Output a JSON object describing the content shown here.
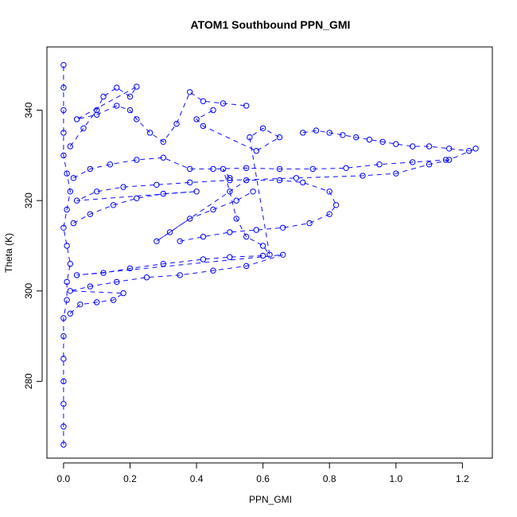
{
  "chart_data": {
    "type": "scatter",
    "title": "ATOM1 Southbound PPN_GMI",
    "xlabel": "PPN_GMI",
    "ylabel": "Theta (K)",
    "xlim": [
      -0.05,
      1.29
    ],
    "ylim": [
      263,
      354
    ],
    "x_ticks": [
      0.0,
      0.2,
      0.4,
      0.6,
      0.8,
      1.0,
      1.2
    ],
    "x_tick_labels": [
      "0.0",
      "0.2",
      "0.4",
      "0.6",
      "0.8",
      "1.0",
      "1.2"
    ],
    "y_ticks": [
      280,
      300,
      320,
      340
    ],
    "y_tick_labels": [
      "280",
      "300",
      "320",
      "340"
    ],
    "grid": false,
    "legend": "none",
    "marker": "open-circle",
    "color": "#0000ff",
    "series": [
      {
        "values": [
          [
            0.0,
            266
          ],
          [
            0.0,
            270
          ],
          [
            0.0,
            275
          ],
          [
            0.0,
            280
          ],
          [
            0.0,
            285
          ],
          [
            0.0,
            290
          ],
          [
            0.0,
            294
          ],
          [
            0.01,
            298
          ],
          [
            0.01,
            302
          ],
          [
            0.02,
            306
          ],
          [
            0.01,
            310
          ],
          [
            0.0,
            314
          ],
          [
            0.01,
            318
          ],
          [
            0.02,
            322
          ],
          [
            0.01,
            326
          ],
          [
            0.0,
            330
          ],
          [
            0.0,
            335
          ],
          [
            0.0,
            340
          ],
          [
            0.0,
            345
          ],
          [
            0.0,
            350
          ]
        ]
      },
      {
        "values": [
          [
            0.02,
            295
          ],
          [
            0.05,
            297
          ],
          [
            0.1,
            297.5
          ],
          [
            0.15,
            298
          ],
          [
            0.18,
            299.5
          ],
          [
            0.02,
            300
          ],
          [
            0.08,
            301
          ],
          [
            0.16,
            302
          ],
          [
            0.25,
            303
          ],
          [
            0.35,
            303.5
          ],
          [
            0.45,
            304.5
          ],
          [
            0.55,
            305.5
          ],
          [
            0.66,
            308
          ],
          [
            0.04,
            303.5
          ],
          [
            0.12,
            304
          ],
          [
            0.2,
            305
          ],
          [
            0.3,
            306
          ],
          [
            0.42,
            307
          ],
          [
            0.5,
            307.5
          ],
          [
            0.6,
            307.8
          ]
        ]
      },
      {
        "values": [
          [
            0.03,
            315
          ],
          [
            0.08,
            317
          ],
          [
            0.15,
            319
          ],
          [
            0.22,
            320.5
          ],
          [
            0.3,
            321.5
          ],
          [
            0.4,
            322
          ],
          [
            0.04,
            320
          ],
          [
            0.1,
            322
          ],
          [
            0.18,
            323
          ],
          [
            0.28,
            323.5
          ],
          [
            0.38,
            324
          ],
          [
            0.5,
            324.5
          ],
          [
            0.7,
            325
          ],
          [
            0.9,
            325.5
          ],
          [
            1.0,
            326
          ],
          [
            1.1,
            328
          ],
          [
            1.16,
            329
          ],
          [
            1.24,
            331.5
          ]
        ]
      },
      {
        "values": [
          [
            0.03,
            325
          ],
          [
            0.08,
            327
          ],
          [
            0.14,
            328
          ],
          [
            0.22,
            329
          ],
          [
            0.3,
            329.5
          ],
          [
            0.38,
            327
          ],
          [
            0.45,
            327
          ],
          [
            0.55,
            327.2
          ],
          [
            0.65,
            327
          ],
          [
            0.75,
            327
          ],
          [
            0.85,
            327.2
          ],
          [
            0.95,
            328
          ],
          [
            1.05,
            328.5
          ],
          [
            1.15,
            329
          ]
        ]
      },
      {
        "values": [
          [
            0.02,
            332
          ],
          [
            0.06,
            336
          ],
          [
            0.1,
            340
          ],
          [
            0.12,
            343
          ],
          [
            0.16,
            345
          ],
          [
            0.2,
            343
          ],
          [
            0.22,
            345.2
          ],
          [
            0.04,
            338
          ],
          [
            0.1,
            339
          ],
          [
            0.16,
            341
          ],
          [
            0.2,
            340
          ],
          [
            0.22,
            338
          ],
          [
            0.26,
            335
          ],
          [
            0.3,
            333
          ],
          [
            0.34,
            337
          ],
          [
            0.38,
            344
          ],
          [
            0.42,
            342
          ],
          [
            0.48,
            341.5
          ],
          [
            0.55,
            341
          ]
        ]
      },
      {
        "values": [
          [
            0.72,
            335
          ],
          [
            0.76,
            335.5
          ],
          [
            0.8,
            335
          ],
          [
            0.84,
            334.5
          ],
          [
            0.88,
            334
          ],
          [
            0.92,
            333.5
          ],
          [
            0.96,
            333
          ],
          [
            1.0,
            332.5
          ],
          [
            1.05,
            332
          ],
          [
            1.1,
            332
          ],
          [
            1.16,
            331.5
          ],
          [
            1.22,
            331
          ]
        ]
      },
      {
        "values": [
          [
            0.35,
            311
          ],
          [
            0.42,
            312
          ],
          [
            0.5,
            313
          ],
          [
            0.58,
            313.5
          ],
          [
            0.66,
            314
          ],
          [
            0.74,
            315
          ],
          [
            0.8,
            317
          ],
          [
            0.82,
            319
          ],
          [
            0.8,
            322
          ],
          [
            0.72,
            324
          ],
          [
            0.65,
            324.5
          ],
          [
            0.55,
            324.5
          ],
          [
            0.28,
            311
          ],
          [
            0.32,
            313
          ],
          [
            0.38,
            316
          ],
          [
            0.45,
            318
          ],
          [
            0.52,
            320
          ],
          [
            0.57,
            322
          ]
        ]
      },
      {
        "values": [
          [
            0.5,
            325
          ],
          [
            0.48,
            327
          ],
          [
            0.5,
            322
          ],
          [
            0.52,
            316
          ],
          [
            0.55,
            312
          ],
          [
            0.6,
            310
          ],
          [
            0.62,
            308
          ],
          [
            0.56,
            334
          ],
          [
            0.6,
            336
          ],
          [
            0.65,
            334
          ],
          [
            0.58,
            331
          ],
          [
            0.42,
            336.5
          ],
          [
            0.4,
            338
          ],
          [
            0.45,
            340
          ]
        ]
      }
    ]
  }
}
